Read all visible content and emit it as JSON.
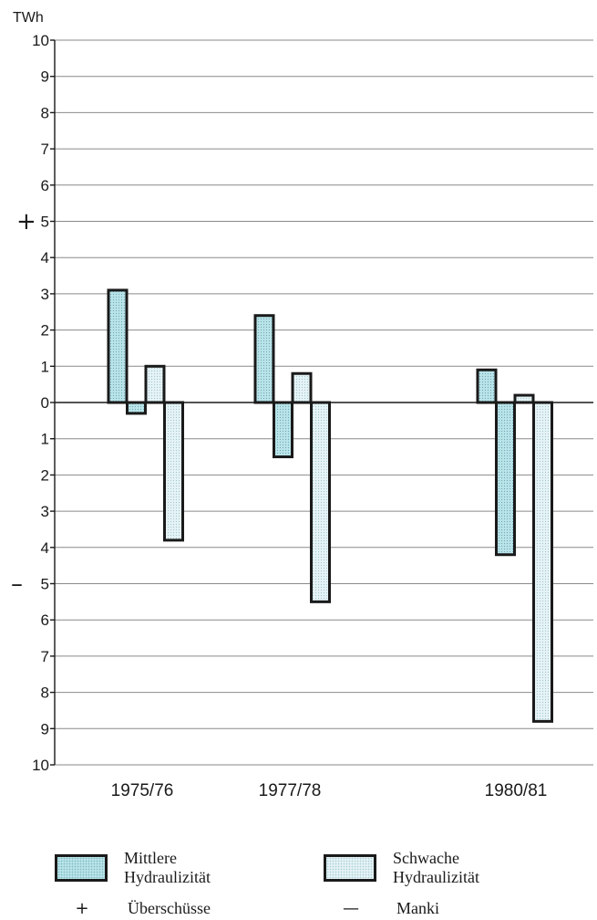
{
  "chart_data": {
    "type": "bar",
    "unit_label": "TWh",
    "ylim": [
      -10,
      10
    ],
    "y_ticks": [
      10,
      9,
      8,
      7,
      6,
      5,
      4,
      3,
      2,
      1,
      0,
      1,
      2,
      3,
      4,
      5,
      6,
      7,
      8,
      9,
      10
    ],
    "y_tick_values": [
      10,
      9,
      8,
      7,
      6,
      5,
      4,
      3,
      2,
      1,
      0,
      -1,
      -2,
      -3,
      -4,
      -5,
      -6,
      -7,
      -8,
      -9,
      -10
    ],
    "plus_sign": "+",
    "minus_sign": "–",
    "categories": [
      "1975/76",
      "1977/78",
      "1980/81"
    ],
    "series": [
      {
        "name": "Mittlere Hydraulizität",
        "type": "surplus",
        "values": [
          3.1,
          2.4,
          0.9
        ],
        "color": "#b9e4e9"
      },
      {
        "name": "Mittlere Hydraulizität",
        "type": "deficit",
        "values": [
          -0.3,
          -1.5,
          -4.2
        ],
        "color": "#b9e4e9"
      },
      {
        "name": "Schwache Hydraulizität",
        "type": "surplus",
        "values": [
          1.0,
          0.8,
          0.2
        ],
        "color": "#e6f3f6"
      },
      {
        "name": "Schwache Hydraulizität",
        "type": "deficit",
        "values": [
          -3.8,
          -5.5,
          -8.8
        ],
        "color": "#e6f3f6"
      }
    ],
    "grid": true
  },
  "legend": {
    "mittlere_line1": "Mittlere",
    "mittlere_line2": "Hydraulizität",
    "schwache_line1": "Schwache",
    "schwache_line2": "Hydraulizität",
    "plus_symbol": "+",
    "plus_label": "Überschüsse",
    "minus_symbol": "—",
    "minus_label": "Manki"
  }
}
